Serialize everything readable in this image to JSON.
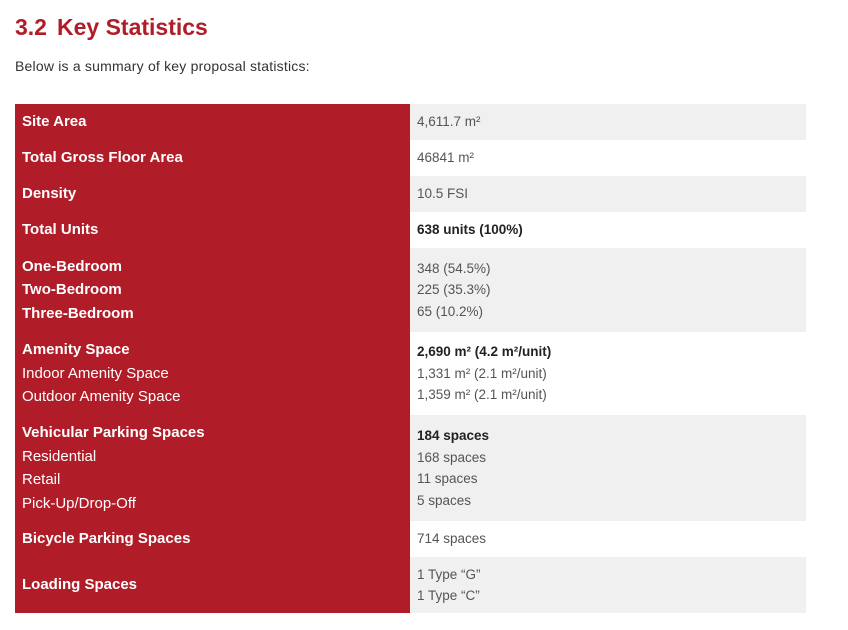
{
  "colors": {
    "accent": "#b01c27",
    "row_alt": "#f1f0f0"
  },
  "heading": {
    "number": "3.2",
    "title": "Key Statistics"
  },
  "intro": "Below is a summary of key proposal statistics:",
  "rows": [
    {
      "labels": [
        {
          "text": "Site Area",
          "bold": true
        }
      ],
      "values": [
        {
          "text": "4,611.7 m²",
          "bold": false
        }
      ]
    },
    {
      "labels": [
        {
          "text": "Total Gross Floor Area",
          "bold": true
        }
      ],
      "values": [
        {
          "text": "46841 m²",
          "bold": false
        }
      ]
    },
    {
      "labels": [
        {
          "text": "Density",
          "bold": true
        }
      ],
      "values": [
        {
          "text": "10.5 FSI",
          "bold": false
        }
      ]
    },
    {
      "labels": [
        {
          "text": "Total Units",
          "bold": true
        }
      ],
      "values": [
        {
          "text": "638 units (100%)",
          "bold": true
        }
      ]
    },
    {
      "labels": [
        {
          "text": "One-Bedroom",
          "bold": true
        },
        {
          "text": "Two-Bedroom",
          "bold": true
        },
        {
          "text": "Three-Bedroom",
          "bold": true
        }
      ],
      "values": [
        {
          "text": "348 (54.5%)",
          "bold": false
        },
        {
          "text": "225 (35.3%)",
          "bold": false
        },
        {
          "text": "65 (10.2%)",
          "bold": false
        }
      ]
    },
    {
      "labels": [
        {
          "text": "Amenity Space",
          "bold": true
        },
        {
          "text": "Indoor Amenity Space",
          "bold": false
        },
        {
          "text": "Outdoor Amenity Space",
          "bold": false
        }
      ],
      "values": [
        {
          "text": "2,690 m² (4.2 m²/unit)",
          "bold": true
        },
        {
          "text": "1,331 m² (2.1 m²/unit)",
          "bold": false
        },
        {
          "text": "1,359 m² (2.1 m²/unit)",
          "bold": false
        }
      ]
    },
    {
      "labels": [
        {
          "text": "Vehicular Parking Spaces",
          "bold": true
        },
        {
          "text": "Residential",
          "bold": false
        },
        {
          "text": "Retail",
          "bold": false
        },
        {
          "text": "Pick-Up/Drop-Off",
          "bold": false
        }
      ],
      "values": [
        {
          "text": "184 spaces",
          "bold": true
        },
        {
          "text": "168 spaces",
          "bold": false
        },
        {
          "text": "11 spaces",
          "bold": false
        },
        {
          "text": "5 spaces",
          "bold": false
        }
      ]
    },
    {
      "labels": [
        {
          "text": "Bicycle Parking Spaces",
          "bold": true
        }
      ],
      "values": [
        {
          "text": "714 spaces",
          "bold": false
        }
      ]
    },
    {
      "labels": [
        {
          "text": "Loading Spaces",
          "bold": true
        }
      ],
      "values": [
        {
          "text": "1 Type “G”",
          "bold": false
        },
        {
          "text": "1 Type “C”",
          "bold": false
        }
      ]
    }
  ]
}
